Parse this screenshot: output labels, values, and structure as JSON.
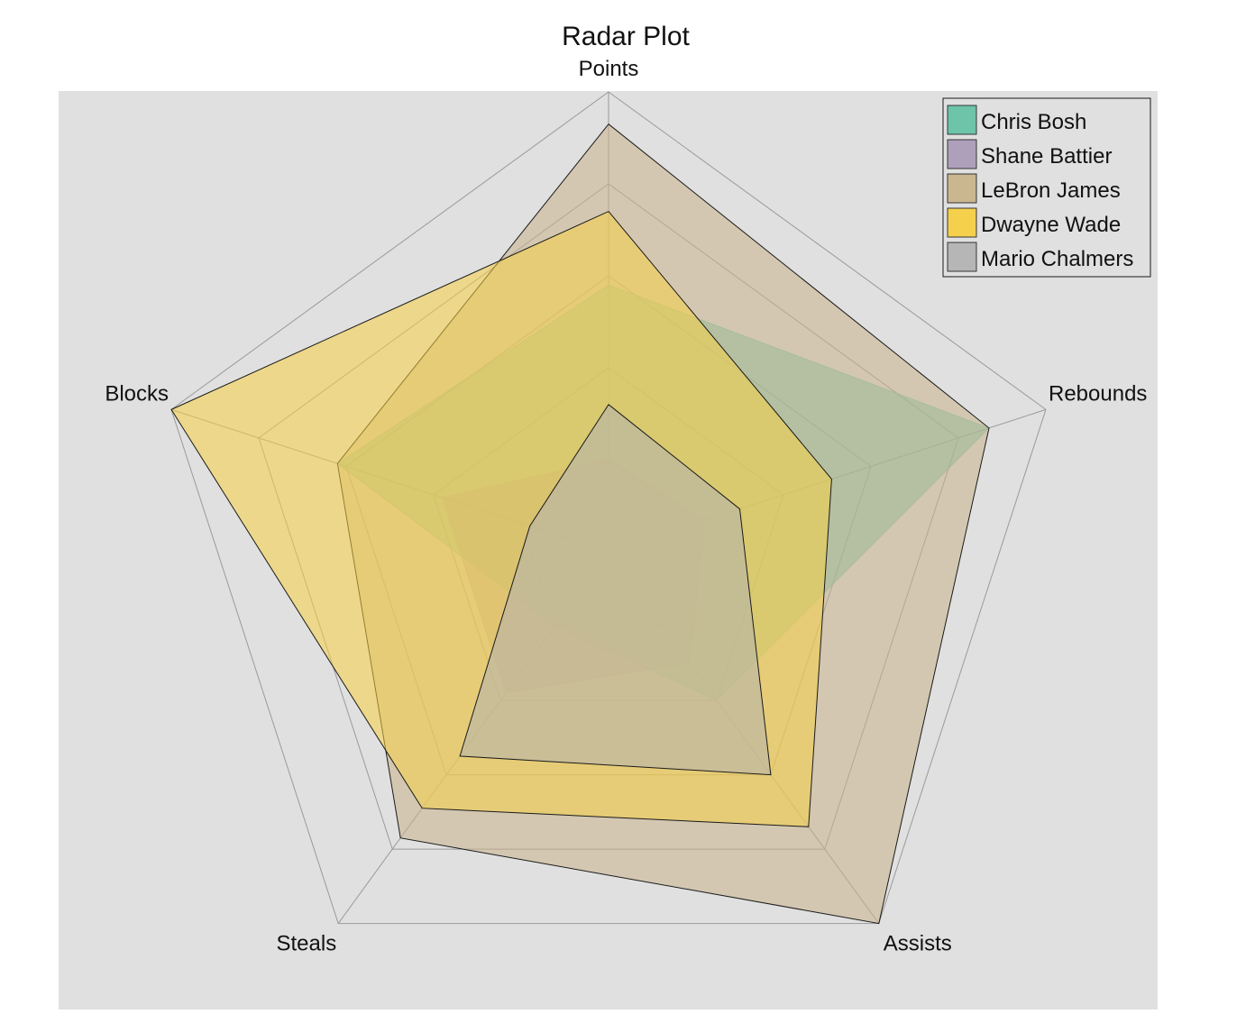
{
  "chart_data": {
    "type": "radar",
    "title": "Radar Plot",
    "axes": [
      "Points",
      "Rebounds",
      "Assists",
      "Steals",
      "Blocks"
    ],
    "range": [
      0,
      1
    ],
    "rings": 5,
    "grid": true,
    "legend_position": "top-right",
    "series": [
      {
        "name": "Chris Bosh",
        "color": "#66c2a5",
        "values": [
          0.58,
          0.87,
          0.4,
          0.2,
          0.62
        ],
        "outline": false
      },
      {
        "name": "Shane Battier",
        "color": "#ab9cb8",
        "values": [
          0.2,
          0.22,
          0.3,
          0.38,
          0.38
        ],
        "outline": false
      },
      {
        "name": "LeBron James",
        "color": "#c8b38a",
        "values": [
          0.93,
          0.87,
          1.0,
          0.77,
          0.62
        ],
        "outline": true
      },
      {
        "name": "Dwayne Wade",
        "color": "#f6cf45",
        "values": [
          0.74,
          0.51,
          0.74,
          0.69,
          1.0
        ],
        "outline": true
      },
      {
        "name": "Mario Chalmers",
        "color": "#b3b3b3",
        "values": [
          0.32,
          0.3,
          0.6,
          0.55,
          0.18
        ],
        "outline": true
      }
    ]
  }
}
